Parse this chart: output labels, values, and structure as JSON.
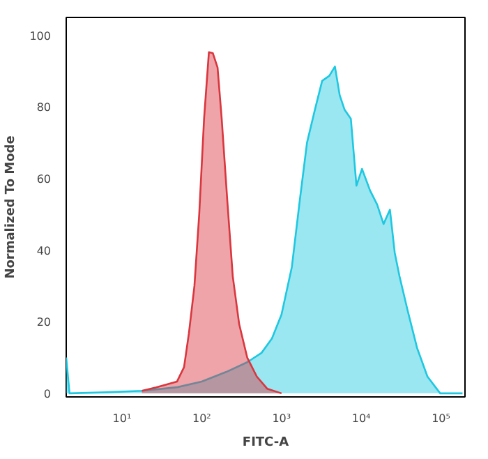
{
  "chart_data": {
    "type": "area",
    "xlabel": "FITC-A",
    "ylabel": "Normalized To Mode",
    "log": "x",
    "grid": false,
    "xlim": [
      2,
      200000
    ],
    "ylim": [
      -1,
      105
    ],
    "xticks": [
      {
        "value": 10,
        "label": "10¹"
      },
      {
        "value": 100,
        "label": "10²"
      },
      {
        "value": 1000,
        "label": "10³"
      },
      {
        "value": 10000,
        "label": "10⁴"
      },
      {
        "value": 100000,
        "label": "10⁵"
      }
    ],
    "yticks": [
      0,
      20,
      40,
      60,
      80,
      100
    ],
    "series": [
      {
        "color": "#1ec8e0",
        "x": [
          2,
          2.2,
          6.5,
          17.8,
          49,
          100,
          204,
          372,
          562,
          759,
          1000,
          1349,
          1698,
          2089,
          2630,
          3236,
          3981,
          4677,
          5370,
          6166,
          7413,
          8710,
          10230,
          12880,
          15850,
          19050,
          22910,
          26300,
          30200,
          38020,
          50120,
          67610,
          97720,
          186200
        ],
        "values": [
          10,
          0,
          0.3,
          0.7,
          1.7,
          3.3,
          6,
          8.7,
          11.3,
          15.3,
          22,
          35.3,
          54,
          70,
          79.3,
          87.3,
          88.7,
          91.3,
          83.3,
          79.3,
          76.7,
          58,
          62.7,
          56.7,
          52.7,
          47.3,
          51.3,
          39.3,
          32.7,
          23.3,
          12.7,
          4.7,
          0,
          0
        ]
      },
      {
        "color": "#d9363e",
        "x": [
          17.8,
          27,
          49,
          60,
          69,
          81,
          93,
          107,
          123,
          138,
          158,
          178,
          209,
          245,
          295,
          372,
          490,
          661,
          1000
        ],
        "values": [
          0.7,
          1.7,
          3.3,
          7.3,
          16.7,
          30,
          50,
          76.7,
          95.3,
          95,
          91,
          76.7,
          54,
          32.7,
          19.3,
          10,
          4.7,
          1.3,
          0
        ]
      }
    ]
  }
}
